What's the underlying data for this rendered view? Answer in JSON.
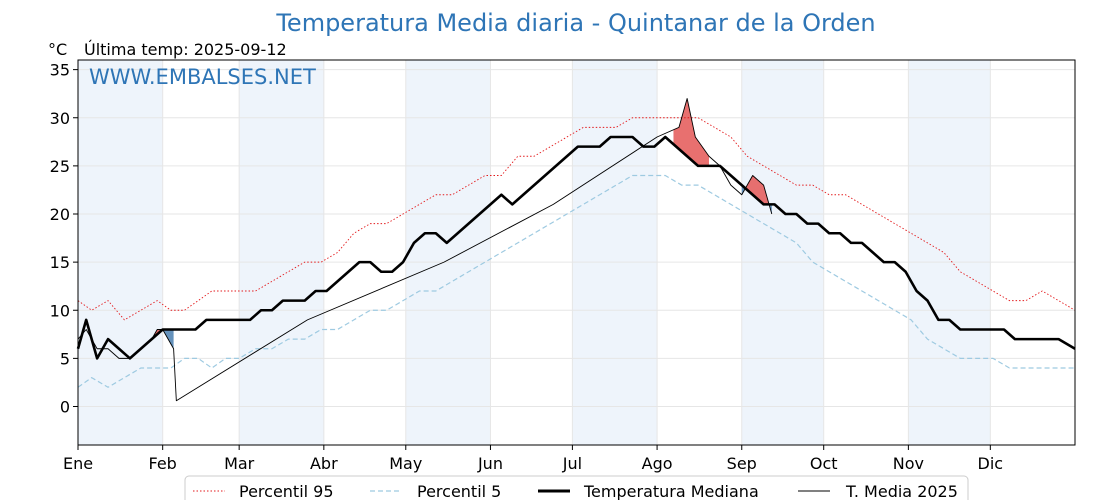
{
  "chart": {
    "title": "Temperatura Media diaria - Quintanar de la Orden",
    "unit_label": "°C",
    "last_temp_label": "Última temp: 2025-09-12",
    "watermark": "WWW.EMBALSES.NET"
  },
  "colors": {
    "title": "#2e75b6",
    "p95": "#e31a1c",
    "p5": "#9ecae1",
    "median": "#000000",
    "media2025": "#000000",
    "above_fill": "#e45756",
    "below_fill": "#4a7fb0",
    "band": "#eef4fb",
    "grid": "#e6e6e6"
  },
  "chart_data": {
    "type": "line",
    "x_unit": "day_of_year",
    "xlim": [
      1,
      366
    ],
    "ylim": [
      -4,
      36
    ],
    "yticks": [
      0,
      5,
      10,
      15,
      20,
      25,
      30,
      35
    ],
    "months": [
      {
        "label": "Ene",
        "day": 1
      },
      {
        "label": "Feb",
        "day": 32
      },
      {
        "label": "Mar",
        "day": 60
      },
      {
        "label": "Abr",
        "day": 91
      },
      {
        "label": "May",
        "day": 121
      },
      {
        "label": "Jun",
        "day": 152
      },
      {
        "label": "Jul",
        "day": 182
      },
      {
        "label": "Ago",
        "day": 213
      },
      {
        "label": "Sep",
        "day": 244
      },
      {
        "label": "Oct",
        "day": 274
      },
      {
        "label": "Nov",
        "day": 305
      },
      {
        "label": "Dic",
        "day": 335
      }
    ],
    "shaded_months": [
      "Ene",
      "Mar",
      "May",
      "Jul",
      "Sep",
      "Nov"
    ],
    "grid": true,
    "legend_position": "bottom-center",
    "series": [
      {
        "key": "p95",
        "name": "Percentil 95",
        "style": "dotted",
        "points": [
          [
            1,
            11
          ],
          [
            6,
            10
          ],
          [
            12,
            11
          ],
          [
            18,
            9
          ],
          [
            24,
            10
          ],
          [
            30,
            11
          ],
          [
            35,
            10
          ],
          [
            40,
            10
          ],
          [
            45,
            11
          ],
          [
            50,
            12
          ],
          [
            55,
            12
          ],
          [
            60,
            12
          ],
          [
            66,
            12
          ],
          [
            72,
            13
          ],
          [
            78,
            14
          ],
          [
            84,
            15
          ],
          [
            90,
            15
          ],
          [
            96,
            16
          ],
          [
            102,
            18
          ],
          [
            108,
            19
          ],
          [
            114,
            19
          ],
          [
            120,
            20
          ],
          [
            126,
            21
          ],
          [
            132,
            22
          ],
          [
            138,
            22
          ],
          [
            144,
            23
          ],
          [
            150,
            24
          ],
          [
            156,
            24
          ],
          [
            162,
            26
          ],
          [
            168,
            26
          ],
          [
            174,
            27
          ],
          [
            180,
            28
          ],
          [
            186,
            29
          ],
          [
            192,
            29
          ],
          [
            198,
            29
          ],
          [
            204,
            30
          ],
          [
            210,
            30
          ],
          [
            216,
            30
          ],
          [
            222,
            30
          ],
          [
            228,
            30
          ],
          [
            234,
            29
          ],
          [
            240,
            28
          ],
          [
            246,
            26
          ],
          [
            252,
            25
          ],
          [
            258,
            24
          ],
          [
            264,
            23
          ],
          [
            270,
            23
          ],
          [
            276,
            22
          ],
          [
            282,
            22
          ],
          [
            288,
            21
          ],
          [
            294,
            20
          ],
          [
            300,
            19
          ],
          [
            306,
            18
          ],
          [
            312,
            17
          ],
          [
            318,
            16
          ],
          [
            324,
            14
          ],
          [
            330,
            13
          ],
          [
            336,
            12
          ],
          [
            342,
            11
          ],
          [
            348,
            11
          ],
          [
            354,
            12
          ],
          [
            360,
            11
          ],
          [
            366,
            10
          ]
        ]
      },
      {
        "key": "p5",
        "name": "Percentil 5",
        "style": "dashed",
        "points": [
          [
            1,
            2
          ],
          [
            6,
            3
          ],
          [
            12,
            2
          ],
          [
            18,
            3
          ],
          [
            24,
            4
          ],
          [
            30,
            4
          ],
          [
            35,
            4
          ],
          [
            40,
            5
          ],
          [
            45,
            5
          ],
          [
            50,
            4
          ],
          [
            55,
            5
          ],
          [
            60,
            5
          ],
          [
            66,
            6
          ],
          [
            72,
            6
          ],
          [
            78,
            7
          ],
          [
            84,
            7
          ],
          [
            90,
            8
          ],
          [
            96,
            8
          ],
          [
            102,
            9
          ],
          [
            108,
            10
          ],
          [
            114,
            10
          ],
          [
            120,
            11
          ],
          [
            126,
            12
          ],
          [
            132,
            12
          ],
          [
            138,
            13
          ],
          [
            144,
            14
          ],
          [
            150,
            15
          ],
          [
            156,
            16
          ],
          [
            162,
            17
          ],
          [
            168,
            18
          ],
          [
            174,
            19
          ],
          [
            180,
            20
          ],
          [
            186,
            21
          ],
          [
            192,
            22
          ],
          [
            198,
            23
          ],
          [
            204,
            24
          ],
          [
            210,
            24
          ],
          [
            216,
            24
          ],
          [
            222,
            23
          ],
          [
            228,
            23
          ],
          [
            234,
            22
          ],
          [
            240,
            21
          ],
          [
            246,
            20
          ],
          [
            252,
            19
          ],
          [
            258,
            18
          ],
          [
            264,
            17
          ],
          [
            270,
            15
          ],
          [
            276,
            14
          ],
          [
            282,
            13
          ],
          [
            288,
            12
          ],
          [
            294,
            11
          ],
          [
            300,
            10
          ],
          [
            306,
            9
          ],
          [
            312,
            7
          ],
          [
            318,
            6
          ],
          [
            324,
            5
          ],
          [
            330,
            5
          ],
          [
            336,
            5
          ],
          [
            342,
            4
          ],
          [
            348,
            4
          ],
          [
            354,
            4
          ],
          [
            360,
            4
          ],
          [
            366,
            4
          ]
        ]
      },
      {
        "key": "median",
        "name": "Temperatura Mediana",
        "style": "solid-thick",
        "points": [
          [
            1,
            6
          ],
          [
            4,
            9
          ],
          [
            8,
            5
          ],
          [
            12,
            7
          ],
          [
            16,
            6
          ],
          [
            20,
            5
          ],
          [
            24,
            6
          ],
          [
            28,
            7
          ],
          [
            32,
            8
          ],
          [
            36,
            8
          ],
          [
            40,
            8
          ],
          [
            44,
            8
          ],
          [
            48,
            9
          ],
          [
            52,
            9
          ],
          [
            56,
            9
          ],
          [
            60,
            9
          ],
          [
            64,
            9
          ],
          [
            68,
            10
          ],
          [
            72,
            10
          ],
          [
            76,
            11
          ],
          [
            80,
            11
          ],
          [
            84,
            11
          ],
          [
            88,
            12
          ],
          [
            92,
            12
          ],
          [
            96,
            13
          ],
          [
            100,
            14
          ],
          [
            104,
            15
          ],
          [
            108,
            15
          ],
          [
            112,
            14
          ],
          [
            116,
            14
          ],
          [
            120,
            15
          ],
          [
            124,
            17
          ],
          [
            128,
            18
          ],
          [
            132,
            18
          ],
          [
            136,
            17
          ],
          [
            140,
            18
          ],
          [
            144,
            19
          ],
          [
            148,
            20
          ],
          [
            152,
            21
          ],
          [
            156,
            22
          ],
          [
            160,
            21
          ],
          [
            164,
            22
          ],
          [
            168,
            23
          ],
          [
            172,
            24
          ],
          [
            176,
            25
          ],
          [
            180,
            26
          ],
          [
            184,
            27
          ],
          [
            188,
            27
          ],
          [
            192,
            27
          ],
          [
            196,
            28
          ],
          [
            200,
            28
          ],
          [
            204,
            28
          ],
          [
            208,
            27
          ],
          [
            212,
            27
          ],
          [
            216,
            28
          ],
          [
            220,
            27
          ],
          [
            224,
            26
          ],
          [
            228,
            25
          ],
          [
            232,
            25
          ],
          [
            236,
            25
          ],
          [
            240,
            24
          ],
          [
            244,
            23
          ],
          [
            248,
            22
          ],
          [
            252,
            21
          ],
          [
            256,
            21
          ],
          [
            260,
            20
          ],
          [
            264,
            20
          ],
          [
            268,
            19
          ],
          [
            272,
            19
          ],
          [
            276,
            18
          ],
          [
            280,
            18
          ],
          [
            284,
            17
          ],
          [
            288,
            17
          ],
          [
            292,
            16
          ],
          [
            296,
            15
          ],
          [
            300,
            15
          ],
          [
            304,
            14
          ],
          [
            308,
            12
          ],
          [
            312,
            11
          ],
          [
            316,
            9
          ],
          [
            320,
            9
          ],
          [
            324,
            8
          ],
          [
            328,
            8
          ],
          [
            332,
            8
          ],
          [
            336,
            8
          ],
          [
            340,
            8
          ],
          [
            344,
            7
          ],
          [
            348,
            7
          ],
          [
            352,
            7
          ],
          [
            356,
            7
          ],
          [
            360,
            7
          ],
          [
            366,
            6
          ]
        ]
      },
      {
        "key": "media2025",
        "name": "T. Media 2025",
        "style": "solid-thin",
        "points": [
          [
            1,
            7
          ],
          [
            4,
            8
          ],
          [
            8,
            6
          ],
          [
            12,
            6
          ],
          [
            16,
            5
          ],
          [
            20,
            5
          ],
          [
            24,
            6
          ],
          [
            28,
            7
          ],
          [
            30,
            8
          ],
          [
            32,
            8
          ],
          [
            34,
            7
          ],
          [
            36,
            6
          ],
          [
            37,
            0.6
          ],
          [
            85,
            9
          ],
          [
            135,
            15
          ],
          [
            175,
            21
          ],
          [
            213,
            28
          ],
          [
            221,
            29
          ],
          [
            224,
            32
          ],
          [
            227,
            28
          ],
          [
            232,
            26
          ],
          [
            236,
            25
          ],
          [
            240,
            23
          ],
          [
            244,
            22
          ],
          [
            248,
            24
          ],
          [
            252,
            23
          ],
          [
            255,
            20
          ]
        ]
      }
    ]
  }
}
